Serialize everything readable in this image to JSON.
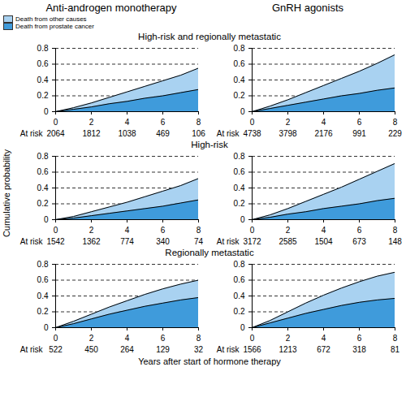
{
  "chart_data": {
    "type": "area",
    "stacked": true,
    "grid": true,
    "legend": "top-left",
    "ylabel": "Cumulative probability",
    "xlabel": "Years after start of hormone therapy",
    "xlim": [
      0,
      8
    ],
    "xticks": [
      0,
      2,
      4,
      6,
      8
    ],
    "ylim": [
      0,
      0.8
    ],
    "yticks": [
      0,
      0.2,
      0.4,
      0.6,
      0.8
    ],
    "columns": [
      "Anti-androgen monotherapy",
      "GnRH agonists"
    ],
    "rows": [
      "High-risk and regionally metastatic",
      "High-risk",
      "Regionally metastatic"
    ],
    "series": [
      {
        "name": "Death from other causes",
        "color": "#a9d2f1"
      },
      {
        "name": "Death from prostate cancer",
        "color": "#3f9bdb"
      }
    ],
    "at_risk_label": "At risk",
    "panels": [
      {
        "column": "Anti-androgen monotherapy",
        "row": "High-risk and regionally metastatic",
        "x": [
          0,
          1,
          2,
          3,
          4,
          5,
          6,
          7,
          8
        ],
        "series": [
          {
            "name": "Death from other causes",
            "values": [
              0,
              0.02,
              0.05,
              0.08,
              0.12,
              0.15,
              0.19,
              0.22,
              0.27
            ]
          },
          {
            "name": "Death from prostate cancer",
            "values": [
              0,
              0.03,
              0.06,
              0.1,
              0.13,
              0.17,
              0.2,
              0.24,
              0.28
            ]
          }
        ],
        "at_risk": {
          "x": [
            0,
            2,
            4,
            6,
            8
          ],
          "values": [
            2064,
            1812,
            1038,
            469,
            106
          ]
        }
      },
      {
        "column": "GnRH agonists",
        "row": "High-risk and regionally metastatic",
        "x": [
          0,
          1,
          2,
          3,
          4,
          5,
          6,
          7,
          8
        ],
        "series": [
          {
            "name": "Death from other causes",
            "values": [
              0,
              0.03,
              0.07,
              0.12,
              0.17,
              0.22,
              0.28,
              0.34,
              0.42
            ]
          },
          {
            "name": "Death from prostate cancer",
            "values": [
              0,
              0.04,
              0.08,
              0.12,
              0.16,
              0.2,
              0.23,
              0.27,
              0.3
            ]
          }
        ],
        "at_risk": {
          "x": [
            0,
            2,
            4,
            6,
            8
          ],
          "values": [
            4738,
            3798,
            2176,
            991,
            229
          ]
        }
      },
      {
        "column": "Anti-androgen monotherapy",
        "row": "High-risk",
        "x": [
          0,
          1,
          2,
          3,
          4,
          5,
          6,
          7,
          8
        ],
        "series": [
          {
            "name": "Death from other causes",
            "values": [
              0,
              0.02,
              0.05,
              0.08,
              0.11,
              0.15,
              0.19,
              0.22,
              0.27
            ]
          },
          {
            "name": "Death from prostate cancer",
            "values": [
              0,
              0.02,
              0.05,
              0.08,
              0.11,
              0.14,
              0.17,
              0.21,
              0.25
            ]
          }
        ],
        "at_risk": {
          "x": [
            0,
            2,
            4,
            6,
            8
          ],
          "values": [
            1542,
            1362,
            774,
            340,
            74
          ]
        }
      },
      {
        "column": "GnRH agonists",
        "row": "High-risk",
        "x": [
          0,
          1,
          2,
          3,
          4,
          5,
          6,
          7,
          8
        ],
        "series": [
          {
            "name": "Death from other causes",
            "values": [
              0,
              0.03,
              0.07,
              0.13,
              0.18,
              0.24,
              0.31,
              0.37,
              0.44
            ]
          },
          {
            "name": "Death from prostate cancer",
            "values": [
              0,
              0.03,
              0.07,
              0.1,
              0.14,
              0.17,
              0.2,
              0.24,
              0.27
            ]
          }
        ],
        "at_risk": {
          "x": [
            0,
            2,
            4,
            6,
            8
          ],
          "values": [
            3172,
            2585,
            1504,
            673,
            148
          ]
        }
      },
      {
        "column": "Anti-androgen monotherapy",
        "row": "Regionally metastatic",
        "x": [
          0,
          1,
          2,
          3,
          4,
          5,
          6,
          7,
          8
        ],
        "series": [
          {
            "name": "Death from other causes",
            "values": [
              0,
              0.03,
              0.06,
              0.09,
              0.12,
              0.15,
              0.18,
              0.2,
              0.22
            ]
          },
          {
            "name": "Death from prostate cancer",
            "values": [
              0,
              0.05,
              0.11,
              0.17,
              0.22,
              0.27,
              0.31,
              0.35,
              0.38
            ]
          }
        ],
        "at_risk": {
          "x": [
            0,
            2,
            4,
            6,
            8
          ],
          "values": [
            522,
            450,
            264,
            129,
            32
          ]
        }
      },
      {
        "column": "GnRH agonists",
        "row": "Regionally metastatic",
        "x": [
          0,
          1,
          2,
          3,
          4,
          5,
          6,
          7,
          8
        ],
        "series": [
          {
            "name": "Death from other causes",
            "values": [
              0,
              0.03,
              0.08,
              0.13,
              0.18,
              0.22,
              0.26,
              0.3,
              0.33
            ]
          },
          {
            "name": "Death from prostate cancer",
            "values": [
              0,
              0.06,
              0.12,
              0.18,
              0.23,
              0.28,
              0.32,
              0.35,
              0.37
            ]
          }
        ],
        "at_risk": {
          "x": [
            0,
            2,
            4,
            6,
            8
          ],
          "values": [
            1566,
            1213,
            672,
            318,
            81
          ]
        }
      }
    ]
  }
}
